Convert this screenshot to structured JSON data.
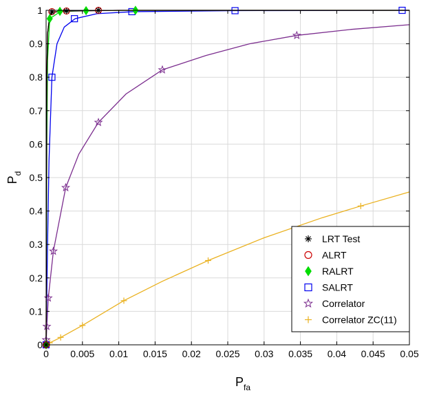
{
  "chart_data": {
    "type": "line",
    "xlabel": {
      "main": "P",
      "sub": "fa"
    },
    "ylabel": {
      "main": "P",
      "sub": "d"
    },
    "xlim": [
      0,
      0.05
    ],
    "ylim": [
      0,
      1
    ],
    "x_ticks": [
      0,
      0.005,
      0.01,
      0.015,
      0.02,
      0.025,
      0.03,
      0.035,
      0.04,
      0.045,
      0.05
    ],
    "x_tick_labels": [
      "0",
      "0.005",
      "0.01",
      "0.015",
      "0.02",
      "0.025",
      "0.03",
      "0.035",
      "0.04",
      "0.045",
      "0.05"
    ],
    "y_ticks": [
      0,
      0.1,
      0.2,
      0.3,
      0.4,
      0.5,
      0.6,
      0.7,
      0.8,
      0.9,
      1
    ],
    "y_tick_labels": [
      "0",
      "0.1",
      "0.2",
      "0.3",
      "0.4",
      "0.5",
      "0.6",
      "0.7",
      "0.8",
      "0.9",
      "1"
    ],
    "grid": true,
    "legend_position": "bottom-right",
    "series": [
      {
        "name": "LRT Test",
        "color": "#000000",
        "marker": "asterisk",
        "line": [
          [
            0,
            0
          ],
          [
            5e-05,
            0.5
          ],
          [
            0.0001,
            0.8
          ],
          [
            0.0002,
            0.93
          ],
          [
            0.0005,
            0.985
          ],
          [
            0.001,
            0.995
          ],
          [
            0.003,
            0.998
          ],
          [
            0.01,
            1
          ],
          [
            0.05,
            1
          ]
        ],
        "markers": [
          [
            0,
            0
          ],
          [
            0.0008,
            0.995
          ],
          [
            0.0028,
            0.998
          ],
          [
            0.0072,
            1
          ]
        ]
      },
      {
        "name": "ALRT",
        "color": "#cc0000",
        "marker": "circle",
        "line": [
          [
            0,
            0
          ],
          [
            5e-05,
            0.5
          ],
          [
            0.0001,
            0.8
          ],
          [
            0.0002,
            0.93
          ],
          [
            0.0005,
            0.985
          ],
          [
            0.001,
            0.995
          ],
          [
            0.003,
            0.998
          ],
          [
            0.01,
            1
          ],
          [
            0.05,
            1
          ]
        ],
        "markers": [
          [
            0,
            0
          ],
          [
            0.0008,
            0.996
          ],
          [
            0.0028,
            0.998
          ],
          [
            0.0072,
            1
          ]
        ]
      },
      {
        "name": "RALRT",
        "color": "#00dd00",
        "marker": "diamond",
        "line": [
          [
            0,
            0
          ],
          [
            0.0001,
            0.6
          ],
          [
            0.0002,
            0.85
          ],
          [
            0.0005,
            0.975
          ],
          [
            0.002,
            0.997
          ],
          [
            0.006,
            0.999
          ],
          [
            0.0125,
            1
          ],
          [
            0.05,
            1
          ]
        ],
        "markers": [
          [
            0,
            0
          ],
          [
            0.0005,
            0.975
          ],
          [
            0.0019,
            0.997
          ],
          [
            0.0055,
            0.999
          ],
          [
            0.0123,
            1
          ]
        ]
      },
      {
        "name": "SALRT",
        "color": "#0000ee",
        "marker": "square",
        "line": [
          [
            0,
            0
          ],
          [
            0.0002,
            0.3
          ],
          [
            0.0004,
            0.55
          ],
          [
            0.0008,
            0.8
          ],
          [
            0.0015,
            0.9
          ],
          [
            0.0025,
            0.95
          ],
          [
            0.004,
            0.975
          ],
          [
            0.007,
            0.99
          ],
          [
            0.012,
            0.996
          ],
          [
            0.026,
            0.999
          ],
          [
            0.05,
            1
          ]
        ],
        "markers": [
          [
            0,
            0
          ],
          [
            0.0008,
            0.8
          ],
          [
            0.0039,
            0.975
          ],
          [
            0.0118,
            0.996
          ],
          [
            0.026,
            0.999
          ],
          [
            0.049,
            1
          ]
        ]
      },
      {
        "name": "Correlator",
        "color": "#7b2d8e",
        "marker": "star",
        "line": [
          [
            0,
            0
          ],
          [
            0.0001,
            0.055
          ],
          [
            0.0003,
            0.14
          ],
          [
            0.001,
            0.28
          ],
          [
            0.0027,
            0.47
          ],
          [
            0.0045,
            0.57
          ],
          [
            0.0072,
            0.665
          ],
          [
            0.011,
            0.75
          ],
          [
            0.016,
            0.822
          ],
          [
            0.022,
            0.865
          ],
          [
            0.028,
            0.9
          ],
          [
            0.0345,
            0.925
          ],
          [
            0.042,
            0.943
          ],
          [
            0.05,
            0.957
          ]
        ],
        "markers": [
          [
            0,
            0.015
          ],
          [
            0.0001,
            0.055
          ],
          [
            0.0003,
            0.14
          ],
          [
            0.001,
            0.28
          ],
          [
            0.0027,
            0.47
          ],
          [
            0.0072,
            0.665
          ],
          [
            0.016,
            0.822
          ],
          [
            0.0345,
            0.925
          ]
        ]
      },
      {
        "name": "Correlator ZC(11)",
        "color": "#eab11f",
        "marker": "plus",
        "line": [
          [
            0,
            0
          ],
          [
            0.0005,
            0.006
          ],
          [
            0.002,
            0.022
          ],
          [
            0.005,
            0.058
          ],
          [
            0.0107,
            0.132
          ],
          [
            0.016,
            0.19
          ],
          [
            0.0223,
            0.252
          ],
          [
            0.03,
            0.32
          ],
          [
            0.038,
            0.38
          ],
          [
            0.0433,
            0.415
          ],
          [
            0.05,
            0.457
          ]
        ],
        "markers": [
          [
            0,
            0
          ],
          [
            0.0005,
            0.006
          ],
          [
            0.002,
            0.022
          ],
          [
            0.005,
            0.058
          ],
          [
            0.0107,
            0.132
          ],
          [
            0.0223,
            0.252
          ],
          [
            0.0433,
            0.415
          ]
        ]
      }
    ]
  }
}
